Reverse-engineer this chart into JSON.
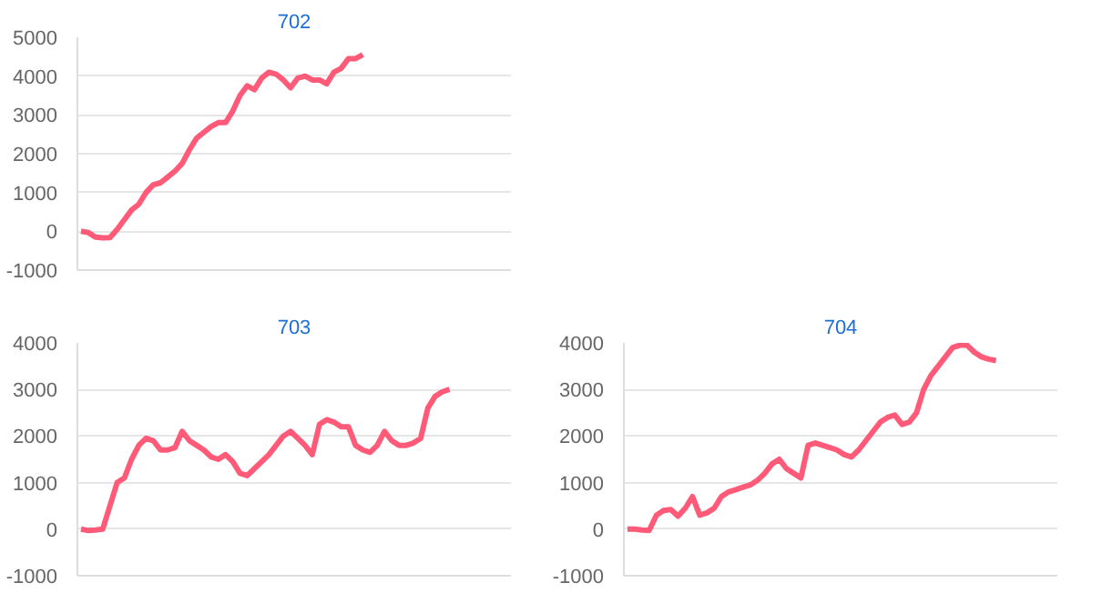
{
  "chart_data": [
    {
      "type": "line",
      "title": "702",
      "categories": [
        null,
        null,
        null,
        null,
        null,
        null,
        null,
        null,
        null,
        null,
        null,
        null,
        null,
        null,
        null,
        null,
        null,
        null,
        null,
        null,
        null,
        null,
        null,
        null,
        null,
        null,
        null,
        null,
        null,
        null,
        null,
        null,
        null,
        null,
        null,
        null,
        null,
        null,
        null,
        null,
        null,
        null,
        null,
        null,
        null,
        null,
        null,
        null,
        null,
        null,
        null,
        null,
        null,
        null,
        null,
        null,
        null,
        null,
        null,
        null
      ],
      "series": [
        {
          "color": "#ff5a78",
          "values": [
            0,
            -30,
            -150,
            -170,
            -160,
            50,
            300,
            550,
            700,
            1000,
            1200,
            1250,
            1400,
            1550,
            1750,
            2100,
            2400,
            2550,
            2700,
            2800,
            2800,
            3100,
            3500,
            3750,
            3650,
            3950,
            4100,
            4050,
            3900,
            3700,
            3950,
            4000,
            3900,
            3900,
            3800,
            4100,
            4200,
            4450,
            4450,
            4550,
            null,
            null,
            null,
            null,
            null,
            null,
            null,
            null,
            null,
            null,
            null,
            null,
            null,
            null,
            null,
            null,
            null,
            null,
            null,
            null
          ]
        }
      ],
      "ylim": [
        -1000,
        5000
      ],
      "yticks": [
        -1000,
        0,
        1000,
        2000,
        3000,
        4000,
        5000
      ],
      "grid": "y",
      "tick_labels": "y"
    },
    {
      "type": "line",
      "title": "703",
      "categories": [
        null,
        null,
        null,
        null,
        null,
        null,
        null,
        null,
        null,
        null,
        null,
        null,
        null,
        null,
        null,
        null,
        null,
        null,
        null,
        null,
        null,
        null,
        null,
        null,
        null,
        null,
        null,
        null,
        null,
        null,
        null,
        null,
        null,
        null,
        null,
        null,
        null,
        null,
        null,
        null,
        null,
        null,
        null,
        null,
        null,
        null,
        null,
        null,
        null,
        null,
        null,
        null,
        null,
        null,
        null,
        null,
        null,
        null,
        null,
        null
      ],
      "series": [
        {
          "color": "#ff5a78",
          "values": [
            0,
            -30,
            -20,
            0,
            500,
            1000,
            1100,
            1500,
            1800,
            1950,
            1900,
            1700,
            1700,
            1750,
            2100,
            1900,
            1800,
            1700,
            1550,
            1500,
            1600,
            1450,
            1200,
            1150,
            1300,
            1450,
            1600,
            1800,
            2000,
            2100,
            1950,
            1800,
            1600,
            2250,
            2350,
            2300,
            2200,
            2200,
            1800,
            1700,
            1650,
            1800,
            2100,
            1900,
            1800,
            1800,
            1850,
            1950,
            2600,
            2850,
            2950,
            3000,
            null,
            null,
            null,
            null,
            null,
            null,
            null,
            null
          ]
        }
      ],
      "ylim": [
        -1000,
        4000
      ],
      "yticks": [
        -1000,
        0,
        1000,
        2000,
        3000,
        4000
      ],
      "grid": "y",
      "tick_labels": "y"
    },
    {
      "type": "line",
      "title": "704",
      "categories": [
        null,
        null,
        null,
        null,
        null,
        null,
        null,
        null,
        null,
        null,
        null,
        null,
        null,
        null,
        null,
        null,
        null,
        null,
        null,
        null,
        null,
        null,
        null,
        null,
        null,
        null,
        null,
        null,
        null,
        null,
        null,
        null,
        null,
        null,
        null,
        null,
        null,
        null,
        null,
        null,
        null,
        null,
        null,
        null,
        null,
        null,
        null,
        null,
        null,
        null,
        null,
        null,
        null,
        null,
        null,
        null,
        null,
        null,
        null,
        null
      ],
      "series": [
        {
          "color": "#ff5a78",
          "values": [
            0,
            0,
            -20,
            -30,
            300,
            400,
            420,
            280,
            450,
            700,
            300,
            350,
            450,
            700,
            800,
            850,
            900,
            950,
            1050,
            1200,
            1400,
            1500,
            1300,
            1200,
            1100,
            1800,
            1850,
            1800,
            1750,
            1700,
            1600,
            1550,
            1700,
            1900,
            2100,
            2300,
            2400,
            2450,
            2250,
            2300,
            2500,
            3000,
            3300,
            3500,
            3700,
            3900,
            3950,
            3950,
            3800,
            3700,
            3650,
            3620,
            null,
            null,
            null,
            null,
            null,
            null,
            null,
            null
          ]
        }
      ],
      "ylim": [
        -1000,
        4000
      ],
      "yticks": [
        -1000,
        0,
        1000,
        2000,
        3000,
        4000
      ],
      "grid": "y",
      "tick_labels": "y"
    }
  ]
}
